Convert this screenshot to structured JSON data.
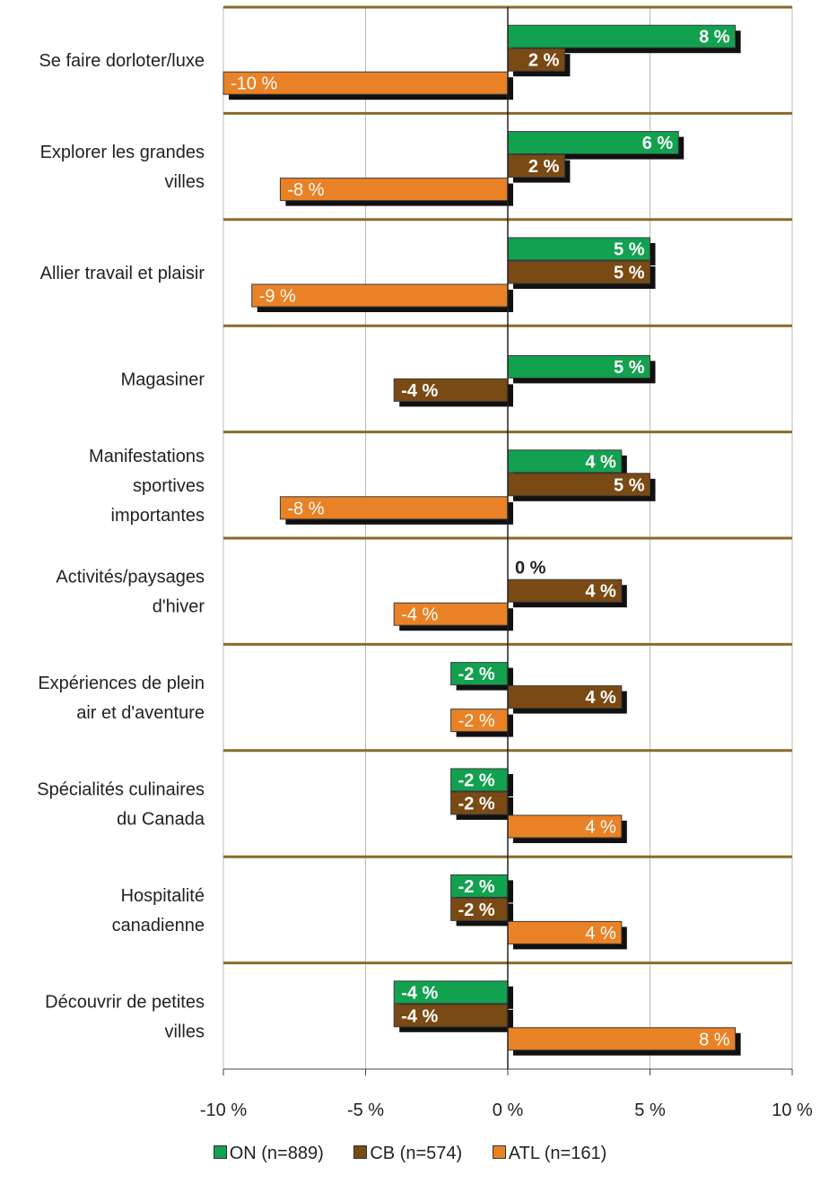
{
  "chart_data": {
    "type": "bar",
    "orientation": "horizontal",
    "categories": [
      "Se faire dorloter/luxe",
      "Explorer les grandes villes",
      "Allier travail et plaisir",
      "Magasiner",
      "Manifestations sportives importantes",
      "Activités/paysages d'hiver",
      "Expériences de plein air et d'aventure",
      "Spécialités culinaires du Canada",
      "Hospitalité canadienne",
      "Découvrir de petites villes"
    ],
    "category_lines": [
      [
        "Se faire dorloter/luxe"
      ],
      [
        "Explorer les grandes",
        "villes"
      ],
      [
        "Allier travail et plaisir"
      ],
      [
        "Magasiner"
      ],
      [
        "Manifestations",
        "sportives",
        "importantes"
      ],
      [
        "Activités/paysages",
        "d'hiver"
      ],
      [
        "Expériences de plein",
        "air et d'aventure"
      ],
      [
        "Spécialités culinaires",
        "du Canada"
      ],
      [
        "Hospitalité",
        "canadienne"
      ],
      [
        "Découvrir de petites",
        "villes"
      ]
    ],
    "series": [
      {
        "name": "ON (n=889)",
        "color": "#12a14f",
        "values": [
          8,
          6,
          5,
          5,
          4,
          0,
          -2,
          -2,
          -2,
          -4
        ],
        "labels": [
          "8 %",
          "6 %",
          "5 %",
          "5 %",
          "4 %",
          "0 %",
          "-2 %",
          "-2 %",
          "-2 %",
          "-4 %"
        ]
      },
      {
        "name": "CB (n=574)",
        "color": "#7a4a14",
        "values": [
          2,
          2,
          5,
          -4,
          5,
          4,
          4,
          -2,
          -2,
          -4
        ],
        "labels": [
          "2 %",
          "2 %",
          "5 %",
          "-4 %",
          "5 %",
          "4 %",
          "4 %",
          "-2 %",
          "-2 %",
          "-4 %"
        ]
      },
      {
        "name": "ATL (n=161)",
        "color": "#e98226",
        "values": [
          -10,
          -8,
          -9,
          null,
          -8,
          -4,
          -2,
          4,
          4,
          8
        ],
        "labels": [
          "-10 %",
          "-8 %",
          "-9 %",
          "",
          "-8 %",
          "-4 %",
          "-2 %",
          "4 %",
          "4 %",
          "8 %"
        ]
      }
    ],
    "xlim": [
      -10,
      10
    ],
    "xticks": [
      -10,
      -5,
      0,
      5,
      10
    ],
    "xtick_labels": [
      "-10 %",
      "-5 %",
      "0 %",
      "5 %",
      "10 %"
    ],
    "grid": true,
    "legend_position": "bottom",
    "title": "",
    "xlabel": "",
    "ylabel": ""
  }
}
